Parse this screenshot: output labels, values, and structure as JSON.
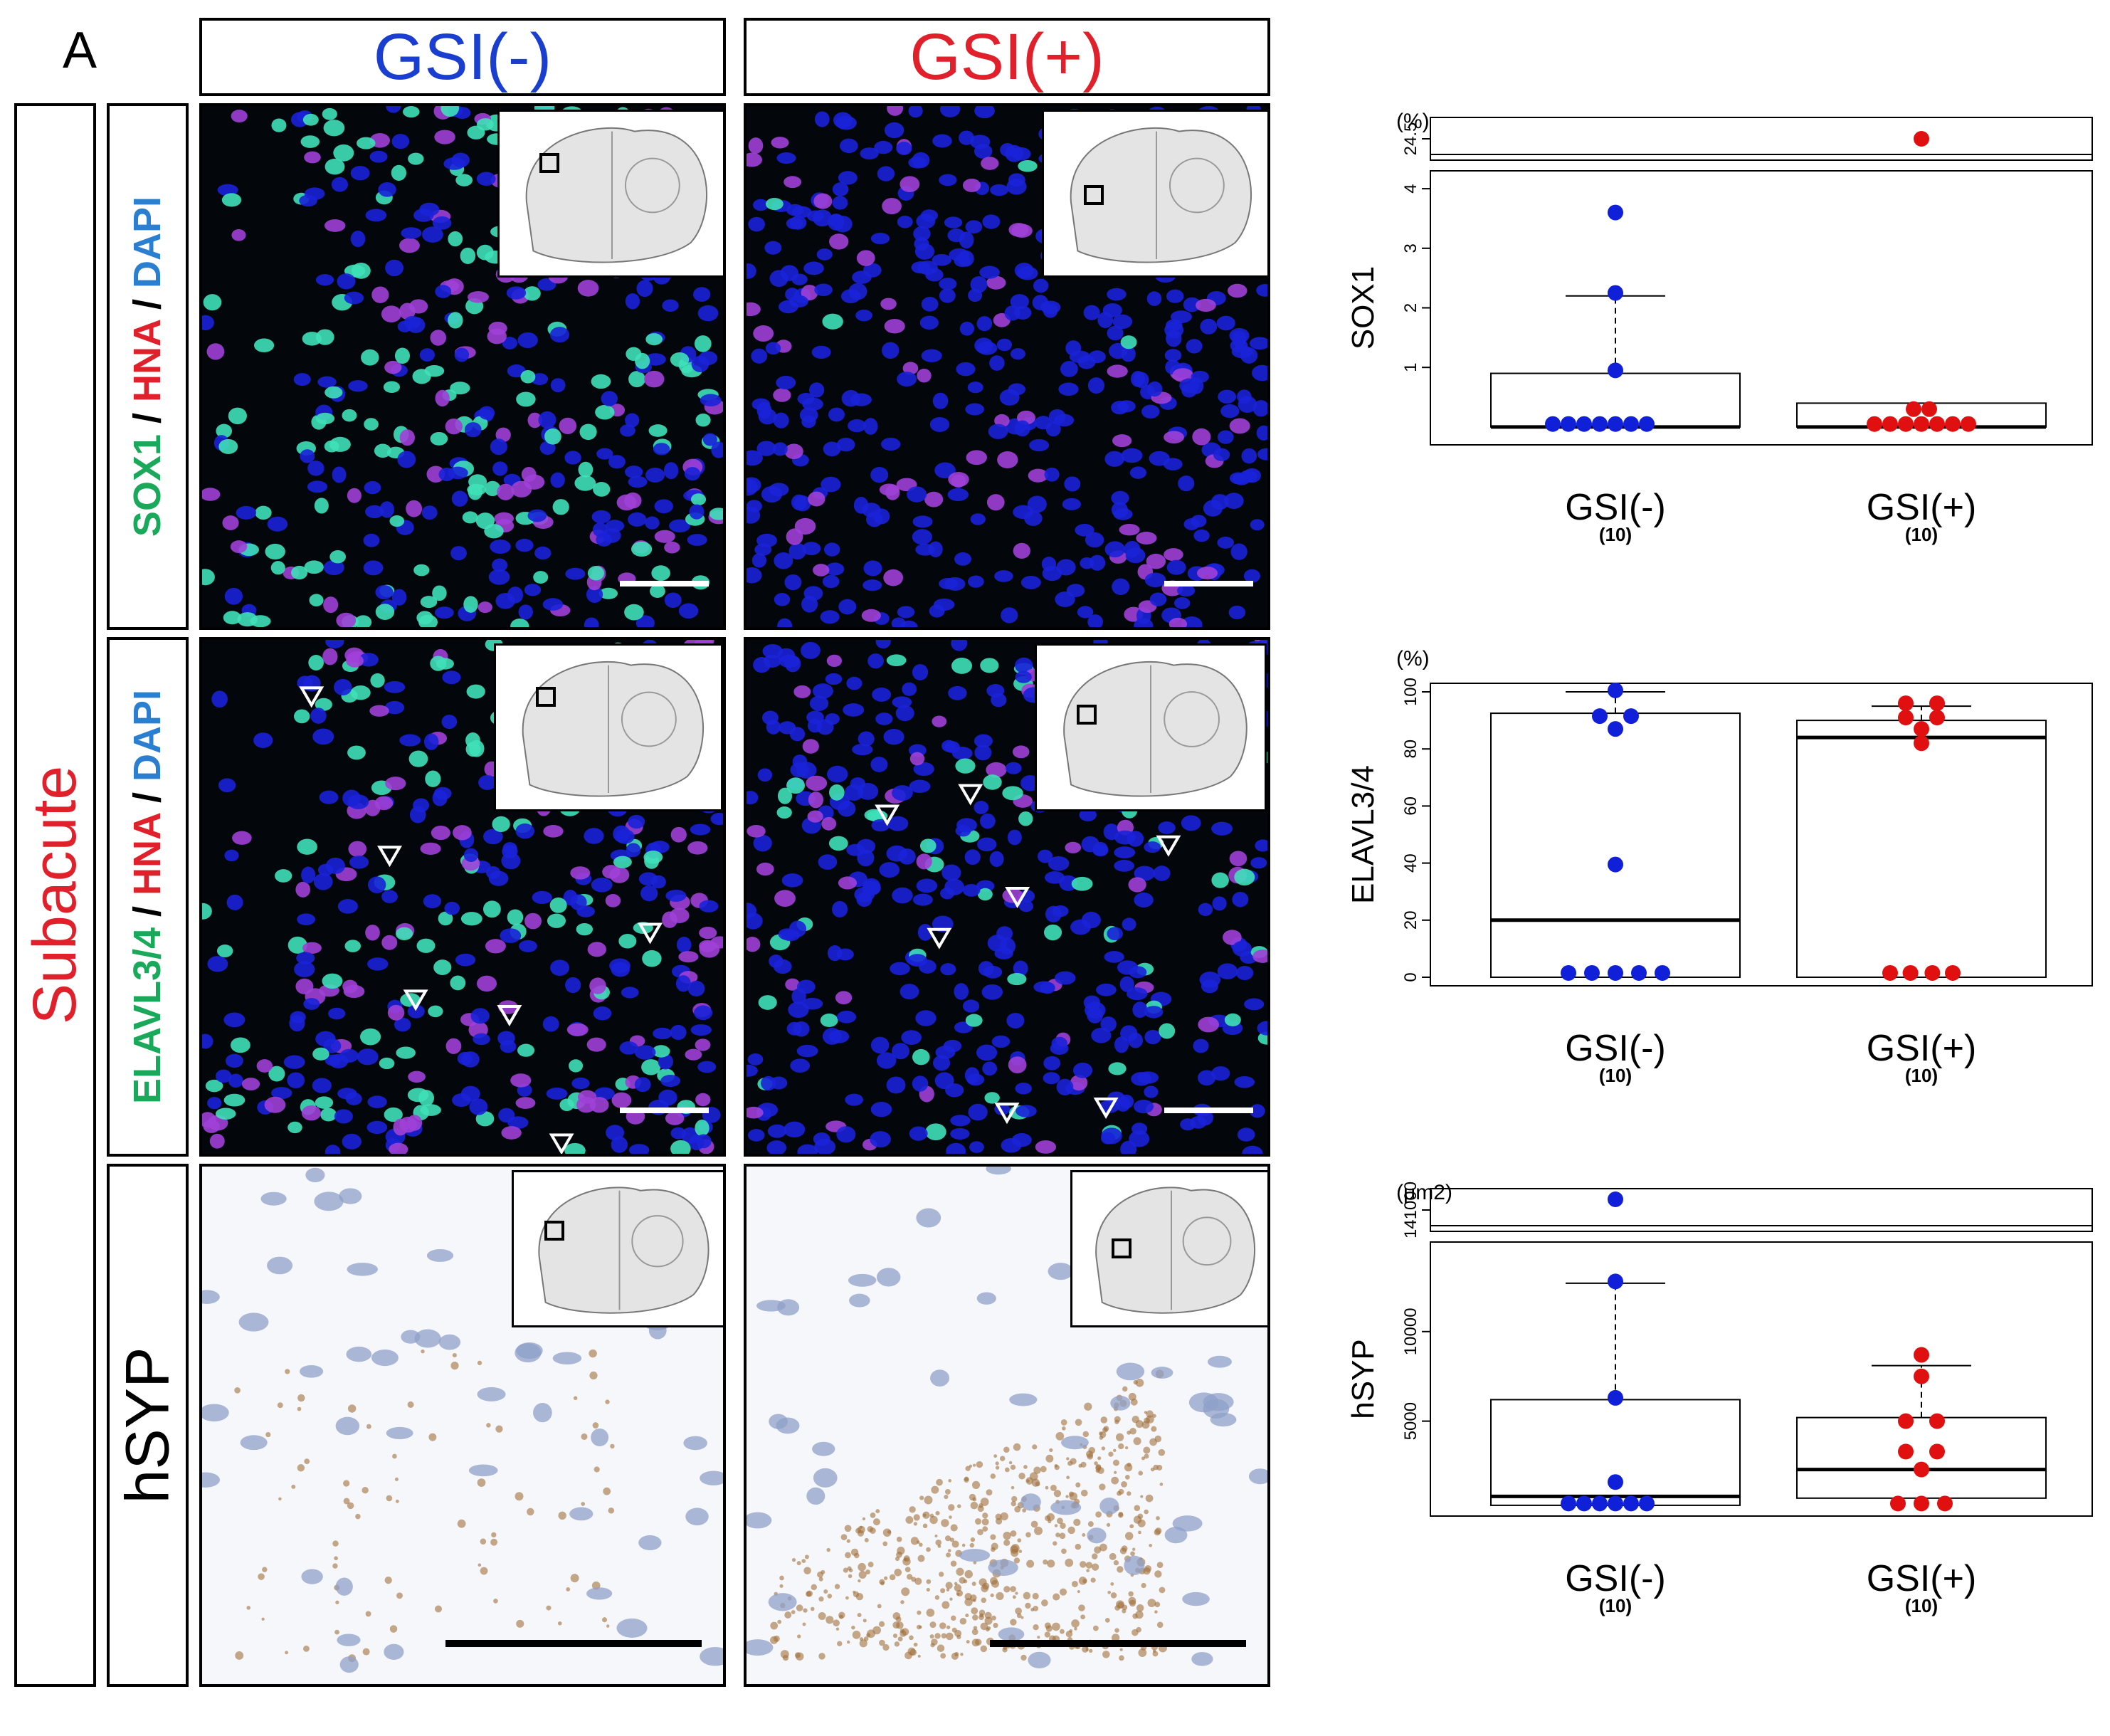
{
  "figure": {
    "panel_letter": "A",
    "row_group_label": "Subacute",
    "columns": [
      "GSI(-)",
      "GSI(+)"
    ],
    "rows": [
      {
        "stain_parts": [
          {
            "text": "SOX1",
            "color": "#1aa85a"
          },
          {
            "text": " / ",
            "color": "#000000"
          },
          {
            "text": "HNA",
            "color": "#e0202a"
          },
          {
            "text": " / ",
            "color": "#000000"
          },
          {
            "text": "DAPI",
            "color": "#2a7fd0"
          }
        ]
      },
      {
        "stain_parts": [
          {
            "text": "ELAVL3/4",
            "color": "#1aa85a"
          },
          {
            "text": " / ",
            "color": "#000000"
          },
          {
            "text": "HNA",
            "color": "#e0202a"
          },
          {
            "text": " / ",
            "color": "#000000"
          },
          {
            "text": "DAPI",
            "color": "#2a7fd0"
          }
        ]
      },
      {
        "stain_parts": [
          {
            "text": "hSYP",
            "color": "#000000"
          }
        ]
      }
    ],
    "colors": {
      "gsi_minus": "#1a3fd0",
      "gsi_plus": "#e0202a",
      "subacute": "#e0202a"
    }
  },
  "chart_data": [
    {
      "type": "scatter",
      "ylabel": "SOX1",
      "unit": "(%)",
      "categories": [
        "GSI(-)",
        "GSI(+)"
      ],
      "n_labels": [
        "(10)",
        "(10)"
      ],
      "axis_break": true,
      "upper_ticks": [
        "24.5"
      ],
      "lower_ticks": [
        1,
        2,
        3,
        4
      ],
      "lower_ylim": [
        -0.3,
        4.3
      ],
      "upper_ylim": [
        24.2,
        24.8
      ],
      "series": [
        {
          "color": "#1020d8",
          "points": [
            {
              "y": 3.6,
              "j": 0
            },
            {
              "y": 2.25,
              "j": 0
            },
            {
              "y": 0.95,
              "j": 0
            },
            {
              "y": 0.05,
              "j": -4
            },
            {
              "y": 0.05,
              "j": -3
            },
            {
              "y": 0.05,
              "j": -2
            },
            {
              "y": 0.05,
              "j": -1
            },
            {
              "y": 0.05,
              "j": 0
            },
            {
              "y": 0.05,
              "j": 1
            },
            {
              "y": 0.05,
              "j": 2
            }
          ],
          "box": {
            "q1": 0.0,
            "median": 0.0,
            "q3": 0.9,
            "whisker_high": 2.2
          }
        },
        {
          "color": "#e01010",
          "points": [
            {
              "y": 24.5,
              "j": 0
            },
            {
              "y": 0.3,
              "j": -0.5
            },
            {
              "y": 0.3,
              "j": 0.5
            },
            {
              "y": 0.05,
              "j": -3
            },
            {
              "y": 0.05,
              "j": -2
            },
            {
              "y": 0.05,
              "j": -1
            },
            {
              "y": 0.05,
              "j": 0
            },
            {
              "y": 0.05,
              "j": 1
            },
            {
              "y": 0.05,
              "j": 2
            },
            {
              "y": 0.05,
              "j": 3
            }
          ],
          "box": {
            "q1": 0.0,
            "median": 0.0,
            "q3": 0.4,
            "whisker_high": null
          }
        }
      ]
    },
    {
      "type": "scatter",
      "ylabel": "ELAVL3/4",
      "unit": "(%)",
      "categories": [
        "GSI(-)",
        "GSI(+)"
      ],
      "n_labels": [
        "(10)",
        "(10)"
      ],
      "axis_break": false,
      "lower_ticks": [
        0,
        20,
        40,
        60,
        80,
        100
      ],
      "lower_ylim": [
        -3,
        103
      ],
      "series": [
        {
          "color": "#1020d8",
          "points": [
            {
              "y": 100.5,
              "j": 0
            },
            {
              "y": 91.5,
              "j": -1
            },
            {
              "y": 91.5,
              "j": 1
            },
            {
              "y": 87,
              "j": 0
            },
            {
              "y": 39.5,
              "j": 0
            },
            {
              "y": 1.5,
              "j": -3
            },
            {
              "y": 1.5,
              "j": -1.5
            },
            {
              "y": 1.5,
              "j": 0
            },
            {
              "y": 1.5,
              "j": 1.5
            },
            {
              "y": 1.5,
              "j": 3
            }
          ],
          "box": {
            "q1": 0.0,
            "median": 20.0,
            "q3": 92.5,
            "whisker_high": 100.0
          }
        },
        {
          "color": "#e01010",
          "points": [
            {
              "y": 96,
              "j": -1
            },
            {
              "y": 96,
              "j": 1
            },
            {
              "y": 91,
              "j": -1
            },
            {
              "y": 91,
              "j": 1
            },
            {
              "y": 87,
              "j": 0
            },
            {
              "y": 82,
              "j": 0
            },
            {
              "y": 1.5,
              "j": -2
            },
            {
              "y": 1.5,
              "j": -0.7
            },
            {
              "y": 1.5,
              "j": 0.7
            },
            {
              "y": 1.5,
              "j": 2
            }
          ],
          "box": {
            "q1": 0.0,
            "median": 84.0,
            "q3": 90.0,
            "whisker_high": 95.0
          }
        }
      ]
    },
    {
      "type": "scatter",
      "ylabel": "hSYP",
      "unit": "(μm2)",
      "categories": [
        "GSI(-)",
        "GSI(+)"
      ],
      "n_labels": [
        "(10)",
        "(10)"
      ],
      "axis_break": true,
      "upper_ticks": [
        "141000"
      ],
      "lower_ticks": [
        5000,
        10000
      ],
      "lower_ylim": [
        -300,
        15000
      ],
      "upper_ylim": [
        140000,
        144000
      ],
      "series": [
        {
          "color": "#1020d8",
          "points": [
            {
              "y": 143000,
              "j": 0
            },
            {
              "y": 12800,
              "j": 0
            },
            {
              "y": 6300,
              "j": 0
            },
            {
              "y": 1600,
              "j": 0
            },
            {
              "y": 400,
              "j": -3
            },
            {
              "y": 400,
              "j": -2
            },
            {
              "y": 400,
              "j": -1
            },
            {
              "y": 400,
              "j": 0
            },
            {
              "y": 400,
              "j": 1
            },
            {
              "y": 400,
              "j": 2
            }
          ],
          "box": {
            "q1": 300,
            "median": 800,
            "q3": 6200,
            "whisker_high": 12700
          }
        },
        {
          "color": "#e01010",
          "points": [
            {
              "y": 8700,
              "j": 0
            },
            {
              "y": 7500,
              "j": 0
            },
            {
              "y": 5000,
              "j": -1
            },
            {
              "y": 5000,
              "j": 1
            },
            {
              "y": 3300,
              "j": -1
            },
            {
              "y": 3300,
              "j": 1
            },
            {
              "y": 2300,
              "j": 0
            },
            {
              "y": 400,
              "j": -1.5
            },
            {
              "y": 400,
              "j": 0
            },
            {
              "y": 400,
              "j": 1.5
            }
          ],
          "box": {
            "q1": 700,
            "median": 2300,
            "q3": 5200,
            "whisker_high": 8100
          }
        }
      ]
    }
  ]
}
